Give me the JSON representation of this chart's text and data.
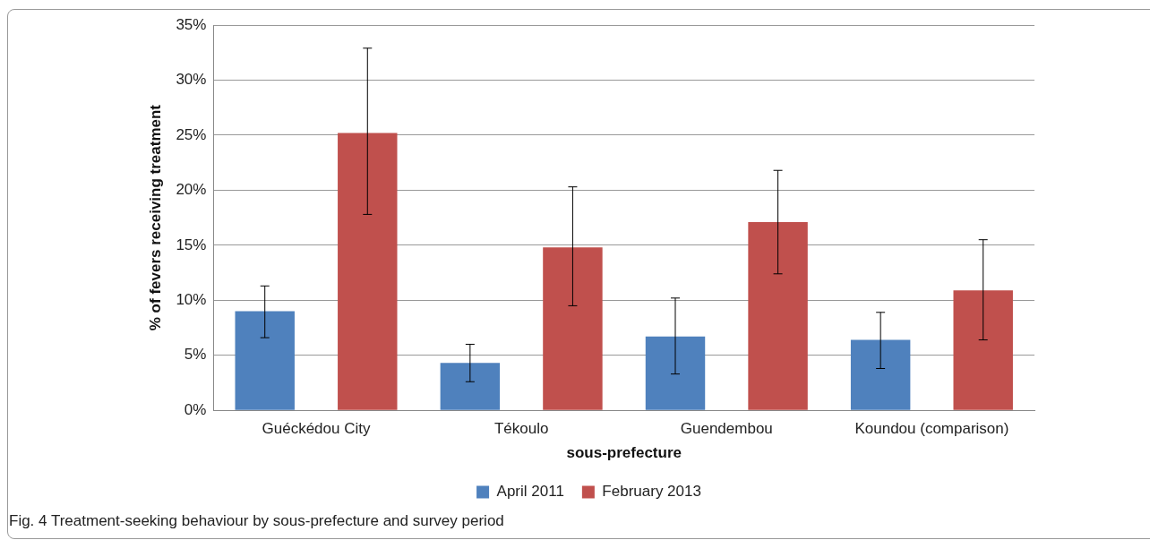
{
  "chart_data": {
    "type": "bar",
    "xlabel": "sous-prefecture",
    "ylabel": "% of fevers receiving treatment",
    "categories": [
      "Guéckédou City",
      "Tékoulo",
      "Guendembou",
      "Koundou (comparison)"
    ],
    "series": [
      {
        "name": "April 2011",
        "color": "#4f81bd",
        "values": [
          9.0,
          4.3,
          6.7,
          6.4
        ],
        "errors": [
          [
            6.6,
            11.3
          ],
          [
            2.6,
            6.0
          ],
          [
            3.3,
            10.2
          ],
          [
            3.8,
            8.9
          ]
        ]
      },
      {
        "name": "February 2013",
        "color": "#c0504d",
        "values": [
          25.2,
          14.8,
          17.1,
          10.9
        ],
        "errors": [
          [
            17.8,
            32.9
          ],
          [
            9.5,
            20.3
          ],
          [
            12.4,
            21.8
          ],
          [
            6.4,
            15.5
          ]
        ]
      }
    ],
    "ylim": [
      0,
      35
    ],
    "yticks": [
      {
        "value": 0,
        "label": "0%"
      },
      {
        "value": 5,
        "label": "5%"
      },
      {
        "value": 10,
        "label": "10%"
      },
      {
        "value": 15,
        "label": "15%"
      },
      {
        "value": 20,
        "label": "20%"
      },
      {
        "value": 25,
        "label": "25%"
      },
      {
        "value": 30,
        "label": "30%"
      },
      {
        "value": 35,
        "label": "35%"
      }
    ],
    "grid": "y",
    "legend": "bottom",
    "annotations": [
      "Fig. 4  Treatment-seeking behaviour by sous-prefecture and survey period"
    ]
  }
}
